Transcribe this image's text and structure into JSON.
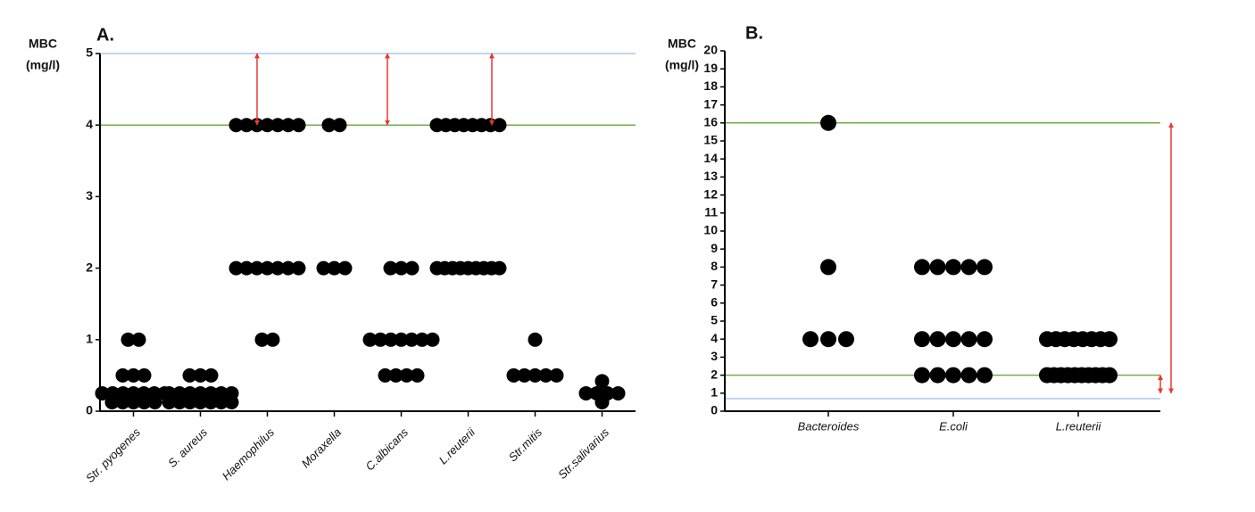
{
  "chart_data": [
    {
      "type": "strip",
      "title": "A.",
      "ylabel": [
        "MBC",
        "(mg/l)"
      ],
      "categories": [
        "Str. pyogenes",
        "S. aureus",
        "Haemophilus",
        "Moraxella",
        "C.albicans",
        "L.reuterii",
        "Str.mitis",
        "Str.salivarius"
      ],
      "values": [
        [
          1,
          1,
          0.5,
          0.5,
          0.5,
          0.25,
          0.25,
          0.25,
          0.25,
          0.25,
          0.25,
          0.25,
          0.125,
          0.125,
          0.125,
          0.125,
          0.125
        ],
        [
          0.5,
          0.5,
          0.5,
          0.25,
          0.25,
          0.25,
          0.25,
          0.25,
          0.25,
          0.25,
          0.125,
          0.125,
          0.125,
          0.125,
          0.125,
          0.125,
          0.125
        ],
        [
          4,
          4,
          4,
          4,
          4,
          4,
          4,
          2,
          2,
          2,
          2,
          2,
          2,
          2,
          1,
          1
        ],
        [
          4,
          4,
          2,
          2,
          2
        ],
        [
          2,
          2,
          2,
          1,
          1,
          1,
          1,
          1,
          1,
          1,
          0.5,
          0.5,
          0.5,
          0.5
        ],
        [
          4,
          4,
          4,
          4,
          4,
          4,
          4,
          4,
          2,
          2,
          2,
          2,
          2,
          2,
          2,
          2,
          2
        ],
        [
          1,
          0.5,
          0.5,
          0.5,
          0.5,
          0.5
        ],
        [
          0.42,
          0.25,
          0.25,
          0.25,
          0.25,
          0.125
        ]
      ],
      "color": "#000000",
      "ylim": [
        0,
        5
      ],
      "yticks": [
        0,
        1,
        2,
        3,
        4,
        5
      ],
      "hlines": [
        {
          "value": 5,
          "color": "#a9c8ec"
        },
        {
          "value": 4,
          "color": "#70ad47"
        }
      ],
      "arrows": [
        {
          "from": 4,
          "to": 5
        },
        {
          "from": 4,
          "to": 5
        },
        {
          "from": 4,
          "to": 5
        }
      ],
      "arrow_color": "#e53935"
    },
    {
      "type": "strip",
      "title": "B.",
      "ylabel": [
        "MBC",
        "(mg/l)"
      ],
      "categories": [
        "Bacteroides",
        "E.coli",
        "L.reuterii"
      ],
      "values": [
        [
          16,
          8,
          4,
          4,
          4
        ],
        [
          8,
          8,
          8,
          8,
          8,
          4,
          4,
          4,
          4,
          4,
          2,
          2,
          2,
          2,
          2
        ],
        [
          4,
          4,
          4,
          4,
          4,
          4,
          4,
          4,
          2,
          2,
          2,
          2,
          2,
          2,
          2,
          2,
          2,
          2
        ]
      ],
      "color": "#000000",
      "ylim": [
        0,
        20
      ],
      "yticks": [
        0,
        1,
        2,
        3,
        4,
        5,
        6,
        7,
        8,
        9,
        10,
        11,
        12,
        13,
        14,
        15,
        16,
        17,
        18,
        19,
        20
      ],
      "hlines": [
        {
          "value": 16,
          "color": "#70ad47"
        },
        {
          "value": 2,
          "color": "#70ad47"
        },
        {
          "value": 0.7,
          "color": "#a9c8ec"
        }
      ],
      "arrows": [
        {
          "from": 1,
          "to": 16
        },
        {
          "from": 1,
          "to": 2
        }
      ],
      "arrow_color": "#e53935"
    }
  ]
}
